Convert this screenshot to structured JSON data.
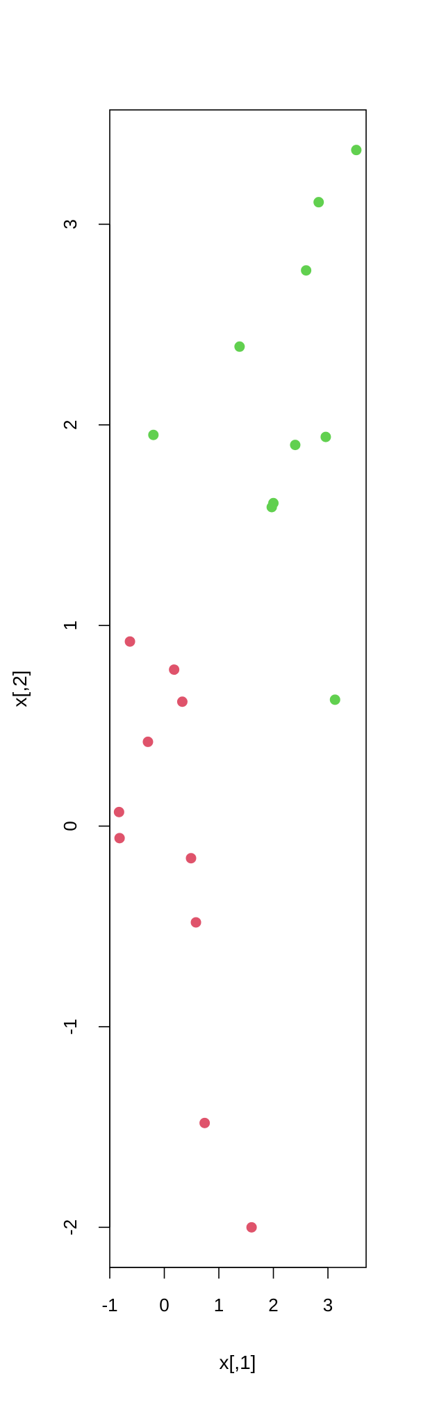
{
  "chart_data": {
    "type": "scatter",
    "title": "",
    "xlabel": "x[,1]",
    "ylabel": "x[,2]",
    "xlim": [
      -1,
      3.7
    ],
    "ylim": [
      -2.2,
      3.57
    ],
    "xticks": [
      -1,
      0,
      1,
      2,
      3
    ],
    "yticks": [
      -2,
      -1,
      0,
      1,
      2,
      3
    ],
    "xtick_labels": [
      "-1",
      "0",
      "1",
      "2",
      "3"
    ],
    "ytick_labels": [
      "-2",
      "-1",
      "0",
      "1",
      "2",
      "3"
    ],
    "grid": false,
    "legend": "none",
    "series": [
      {
        "color": "#DF536B",
        "points": [
          [
            -0.63,
            0.92
          ],
          [
            0.18,
            0.78
          ],
          [
            0.33,
            0.62
          ],
          [
            -0.3,
            0.42
          ],
          [
            -0.83,
            0.07
          ],
          [
            -0.82,
            -0.06
          ],
          [
            0.49,
            -0.16
          ],
          [
            0.58,
            -0.48
          ],
          [
            0.74,
            -1.48
          ],
          [
            1.6,
            -2.0
          ]
        ]
      },
      {
        "color": "#61D04F",
        "points": [
          [
            3.52,
            3.37
          ],
          [
            2.83,
            3.11
          ],
          [
            2.6,
            2.77
          ],
          [
            1.38,
            2.39
          ],
          [
            -0.2,
            1.95
          ],
          [
            2.4,
            1.9
          ],
          [
            2.96,
            1.94
          ],
          [
            2.0,
            1.61
          ],
          [
            1.97,
            1.59
          ],
          [
            3.13,
            0.63
          ]
        ]
      }
    ]
  }
}
